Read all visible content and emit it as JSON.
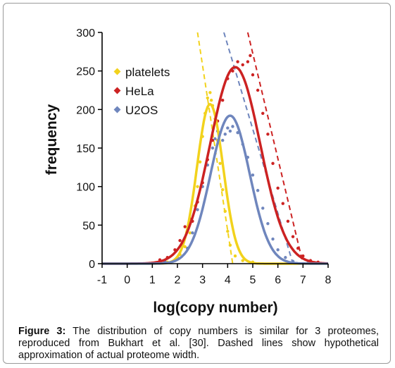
{
  "caption": {
    "label": "Figure 3:",
    "text": "The distribution of copy numbers is similar for 3 proteomes, reproduced from Bukhart et al. [30]. Dashed lines show hypothetical approximation of actual proteome width."
  },
  "chart_data": {
    "type": "line",
    "title": "",
    "xlabel": "log(copy number)",
    "ylabel": "frequency",
    "xlim": [
      -1,
      8
    ],
    "ylim": [
      0,
      300
    ],
    "xticks": [
      -1,
      0,
      1,
      2,
      3,
      4,
      5,
      6,
      7,
      8
    ],
    "yticks": [
      0,
      50,
      100,
      150,
      200,
      250,
      300
    ],
    "grid": false,
    "legend_position": "top-left",
    "series": [
      {
        "name": "platelets",
        "color": "#f2d21c",
        "fit": {
          "shape": "gaussian",
          "peak_x": 3.3,
          "peak_y": 207,
          "sigma": 0.52
        },
        "dashed_line": [
          [
            2.8,
            300
          ],
          [
            4.2,
            0
          ]
        ],
        "points": [
          [
            1.6,
            2
          ],
          [
            1.9,
            5
          ],
          [
            2.1,
            12
          ],
          [
            2.3,
            22
          ],
          [
            2.5,
            40
          ],
          [
            2.7,
            75
          ],
          [
            2.8,
            100
          ],
          [
            2.9,
            132
          ],
          [
            3.0,
            165
          ],
          [
            3.1,
            195
          ],
          [
            3.2,
            215
          ],
          [
            3.3,
            222
          ],
          [
            3.35,
            212
          ],
          [
            3.4,
            205
          ],
          [
            3.5,
            188
          ],
          [
            3.6,
            160
          ],
          [
            3.7,
            130
          ],
          [
            3.8,
            96
          ],
          [
            3.9,
            68
          ],
          [
            4.0,
            42
          ],
          [
            4.1,
            24
          ],
          [
            4.3,
            10
          ],
          [
            4.6,
            4
          ],
          [
            5.0,
            2
          ]
        ]
      },
      {
        "name": "HeLa",
        "color": "#cc2222",
        "fit": {
          "shape": "gaussian",
          "peak_x": 4.3,
          "peak_y": 255,
          "sigma": 1.0
        },
        "dashed_line": [
          [
            4.8,
            300
          ],
          [
            7.0,
            0
          ]
        ],
        "points": [
          [
            1.3,
            5
          ],
          [
            1.6,
            8
          ],
          [
            1.9,
            18
          ],
          [
            2.1,
            30
          ],
          [
            2.3,
            48
          ],
          [
            2.5,
            58
          ],
          [
            2.6,
            55
          ],
          [
            2.8,
            80
          ],
          [
            3.0,
            105
          ],
          [
            3.2,
            135
          ],
          [
            3.4,
            160
          ],
          [
            3.6,
            185
          ],
          [
            3.8,
            212
          ],
          [
            4.0,
            240
          ],
          [
            4.2,
            250
          ],
          [
            4.4,
            262
          ],
          [
            4.6,
            258
          ],
          [
            4.8,
            262
          ],
          [
            4.9,
            270
          ],
          [
            5.0,
            245
          ],
          [
            5.2,
            225
          ],
          [
            5.4,
            195
          ],
          [
            5.6,
            168
          ],
          [
            5.8,
            130
          ],
          [
            6.0,
            98
          ],
          [
            6.2,
            78
          ],
          [
            6.4,
            55
          ],
          [
            6.6,
            35
          ],
          [
            6.8,
            20
          ],
          [
            7.0,
            10
          ],
          [
            7.3,
            4
          ],
          [
            7.6,
            2
          ]
        ]
      },
      {
        "name": "U2OS",
        "color": "#6f86bd",
        "fit": {
          "shape": "gaussian",
          "peak_x": 4.1,
          "peak_y": 192,
          "sigma": 0.78
        },
        "dashed_line": [
          [
            3.85,
            300
          ],
          [
            6.6,
            0
          ]
        ],
        "points": [
          [
            1.5,
            3
          ],
          [
            2.0,
            8
          ],
          [
            2.4,
            20
          ],
          [
            2.6,
            40
          ],
          [
            2.8,
            70
          ],
          [
            3.0,
            100
          ],
          [
            3.2,
            128
          ],
          [
            3.4,
            150
          ],
          [
            3.5,
            162
          ],
          [
            3.6,
            172
          ],
          [
            3.7,
            170
          ],
          [
            3.8,
            160
          ],
          [
            3.9,
            168
          ],
          [
            4.0,
            176
          ],
          [
            4.1,
            172
          ],
          [
            4.2,
            178
          ],
          [
            4.4,
            170
          ],
          [
            4.6,
            155
          ],
          [
            4.8,
            138
          ],
          [
            5.0,
            115
          ],
          [
            5.2,
            95
          ],
          [
            5.4,
            72
          ],
          [
            5.6,
            52
          ],
          [
            5.8,
            32
          ],
          [
            6.0,
            18
          ],
          [
            6.3,
            8
          ],
          [
            6.6,
            3
          ],
          [
            7.2,
            1
          ]
        ]
      }
    ]
  }
}
